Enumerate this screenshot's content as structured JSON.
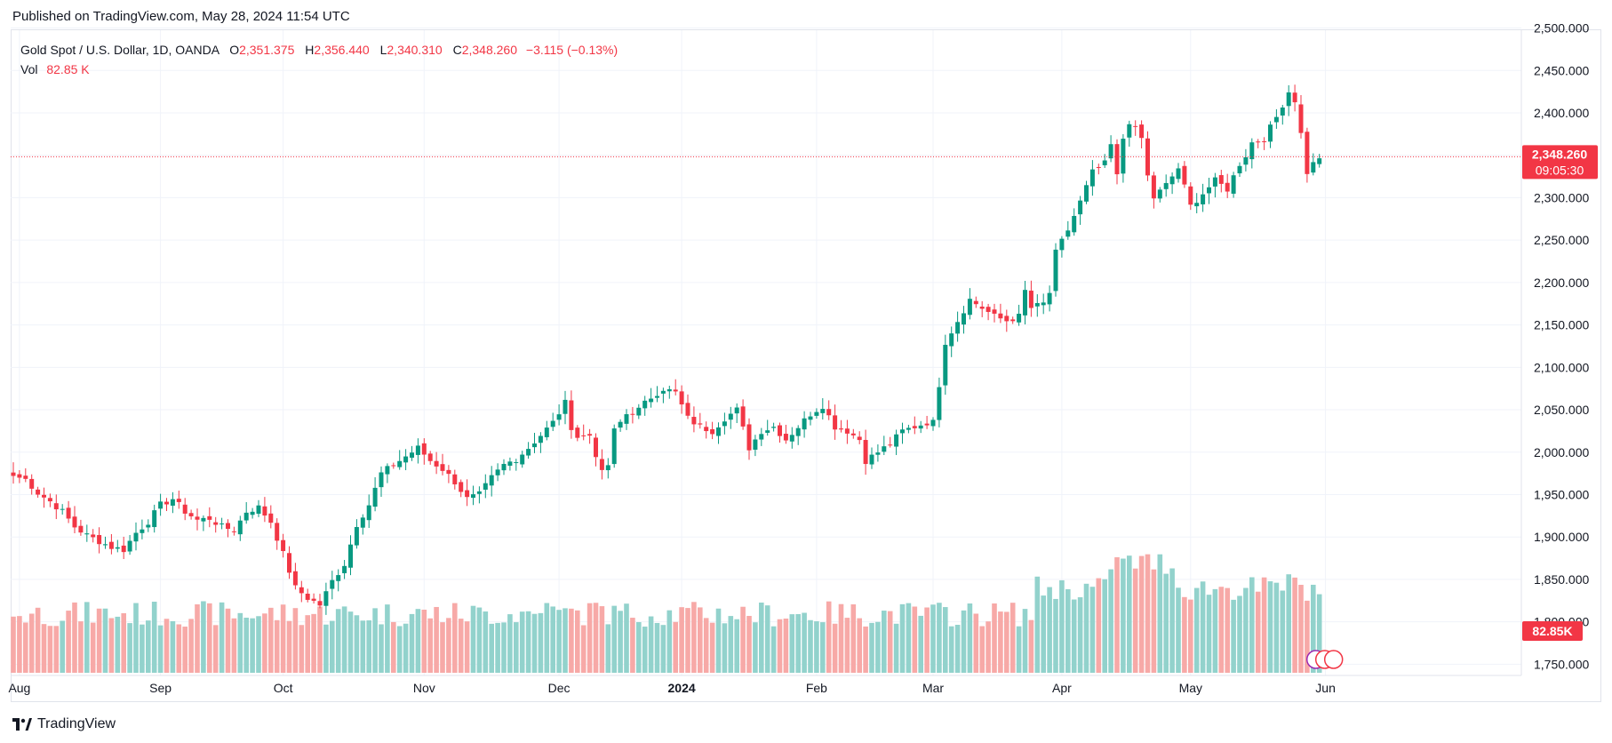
{
  "published_text": "Published on TradingView.com, May 28, 2024 11:54 UTC",
  "legend": {
    "symbol": "Gold Spot / U.S. Dollar, 1D, OANDA",
    "o_label": "O",
    "o_value": "2,351.375",
    "h_label": "H",
    "h_value": "2,356.440",
    "l_label": "L",
    "l_value": "2,340.310",
    "c_label": "C",
    "c_value": "2,348.260",
    "change": "−3.115 (−0.13%)",
    "vol_label": "Vol",
    "vol_value": "82.85 K"
  },
  "footer_text": "TradingView",
  "colors": {
    "up": "#089981",
    "down": "#f23645",
    "vol_up": "#92d2cc",
    "vol_down": "#f7a9a7",
    "grid": "#f0f3fa",
    "axis_text": "#131722"
  },
  "chart_data": {
    "type": "candlestick",
    "title": "Gold Spot / U.S. Dollar, 1D, OANDA",
    "y_ticks": [
      "2,500.000",
      "2,450.000",
      "2,400.000",
      "2,350.000",
      "2,300.000",
      "2,250.000",
      "2,200.000",
      "2,150.000",
      "2,100.000",
      "2,050.000",
      "2,000.000",
      "1,950.000",
      "1,900.000",
      "1,850.000",
      "1,800.000",
      "1,750.000"
    ],
    "ylim": [
      1742,
      2510
    ],
    "x_ticks": [
      {
        "label": "Aug",
        "index": 1
      },
      {
        "label": "Sep",
        "index": 24
      },
      {
        "label": "Oct",
        "index": 44
      },
      {
        "label": "Nov",
        "index": 67
      },
      {
        "label": "Dec",
        "index": 89
      },
      {
        "label": "2024",
        "index": 109,
        "bold": true
      },
      {
        "label": "Feb",
        "index": 131
      },
      {
        "label": "Mar",
        "index": 150
      },
      {
        "label": "Apr",
        "index": 171
      },
      {
        "label": "May",
        "index": 192
      },
      {
        "label": "Jun",
        "index": 214
      }
    ],
    "last_price_label": "2,348.260",
    "countdown_label": "09:05:30",
    "last_price": 2348.26,
    "volume_label": "82.85K",
    "close_points": [
      [
        0,
        1972
      ],
      [
        2,
        1968
      ],
      [
        4,
        1952
      ],
      [
        6,
        1942
      ],
      [
        8,
        1930
      ],
      [
        10,
        1912
      ],
      [
        12,
        1902
      ],
      [
        14,
        1895
      ],
      [
        16,
        1888
      ],
      [
        18,
        1885
      ],
      [
        20,
        1905
      ],
      [
        22,
        1918
      ],
      [
        24,
        1938
      ],
      [
        26,
        1945
      ],
      [
        28,
        1930
      ],
      [
        30,
        1920
      ],
      [
        32,
        1922
      ],
      [
        34,
        1912
      ],
      [
        36,
        1908
      ],
      [
        38,
        1930
      ],
      [
        40,
        1935
      ],
      [
        42,
        1918
      ],
      [
        44,
        1880
      ],
      [
        46,
        1840
      ],
      [
        48,
        1828
      ],
      [
        50,
        1820
      ],
      [
        52,
        1848
      ],
      [
        54,
        1868
      ],
      [
        56,
        1915
      ],
      [
        58,
        1938
      ],
      [
        60,
        1975
      ],
      [
        62,
        1985
      ],
      [
        64,
        1995
      ],
      [
        66,
        2005
      ],
      [
        68,
        1990
      ],
      [
        70,
        1980
      ],
      [
        72,
        1965
      ],
      [
        74,
        1945
      ],
      [
        76,
        1950
      ],
      [
        78,
        1970
      ],
      [
        80,
        1985
      ],
      [
        82,
        1992
      ],
      [
        84,
        2005
      ],
      [
        86,
        2020
      ],
      [
        88,
        2035
      ],
      [
        90,
        2058
      ],
      [
        91,
        2030
      ],
      [
        92,
        2018
      ],
      [
        94,
        2020
      ],
      [
        96,
        1975
      ],
      [
        97,
        1985
      ],
      [
        98,
        2025
      ],
      [
        100,
        2045
      ],
      [
        102,
        2050
      ],
      [
        104,
        2065
      ],
      [
        106,
        2075
      ],
      [
        108,
        2070
      ],
      [
        110,
        2040
      ],
      [
        112,
        2030
      ],
      [
        114,
        2025
      ],
      [
        116,
        2040
      ],
      [
        118,
        2050
      ],
      [
        120,
        2005
      ],
      [
        122,
        2025
      ],
      [
        124,
        2030
      ],
      [
        126,
        2015
      ],
      [
        128,
        2030
      ],
      [
        130,
        2045
      ],
      [
        132,
        2055
      ],
      [
        134,
        2030
      ],
      [
        136,
        2025
      ],
      [
        138,
        2015
      ],
      [
        139,
        1990
      ],
      [
        141,
        2000
      ],
      [
        143,
        2010
      ],
      [
        145,
        2025
      ],
      [
        147,
        2030
      ],
      [
        149,
        2035
      ],
      [
        150,
        2035
      ],
      [
        151,
        2080
      ],
      [
        152,
        2130
      ],
      [
        154,
        2155
      ],
      [
        156,
        2180
      ],
      [
        158,
        2170
      ],
      [
        160,
        2160
      ],
      [
        162,
        2155
      ],
      [
        164,
        2160
      ],
      [
        165,
        2190
      ],
      [
        166,
        2170
      ],
      [
        168,
        2175
      ],
      [
        169,
        2188
      ],
      [
        170,
        2235
      ],
      [
        172,
        2262
      ],
      [
        174,
        2295
      ],
      [
        176,
        2330
      ],
      [
        178,
        2340
      ],
      [
        179,
        2362
      ],
      [
        180,
        2325
      ],
      [
        181,
        2370
      ],
      [
        182,
        2390
      ],
      [
        184,
        2370
      ],
      [
        185,
        2325
      ],
      [
        186,
        2300
      ],
      [
        188,
        2315
      ],
      [
        190,
        2335
      ],
      [
        192,
        2290
      ],
      [
        194,
        2305
      ],
      [
        196,
        2320
      ],
      [
        198,
        2310
      ],
      [
        200,
        2340
      ],
      [
        201,
        2350
      ],
      [
        202,
        2365
      ],
      [
        204,
        2370
      ],
      [
        206,
        2395
      ],
      [
        208,
        2425
      ],
      [
        209,
        2415
      ],
      [
        210,
        2375
      ],
      [
        211,
        2330
      ],
      [
        212,
        2340
      ],
      [
        213,
        2348
      ]
    ]
  }
}
